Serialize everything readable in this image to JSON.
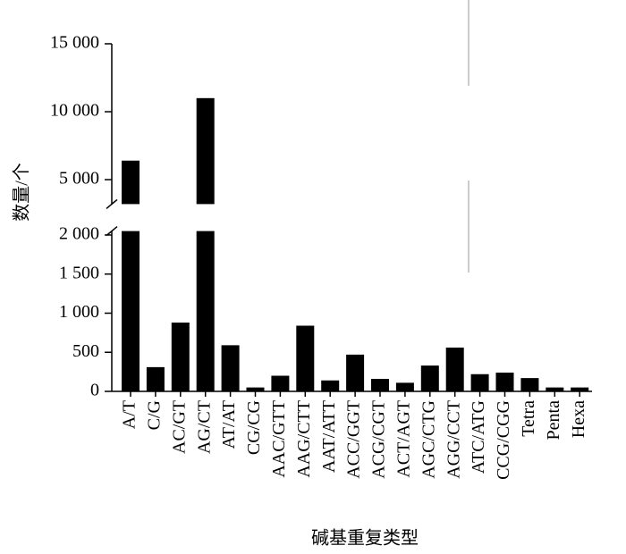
{
  "chart_data": {
    "type": "bar",
    "x_label": "碱基重复类型",
    "y_label": "数量/个",
    "categories": [
      "A/T",
      "C/G",
      "AC/GT",
      "AG/CT",
      "AT/AT",
      "CG/CG",
      "AAC/GTT",
      "AAG/CTT",
      "AAT/ATT",
      "ACC/GGT",
      "ACG/CGT",
      "ACT/AGT",
      "AGC/CTG",
      "AGG/CCT",
      "ATC/ATG",
      "CCG/CGG",
      "Tetra",
      "Penta",
      "Hexa"
    ],
    "values": [
      6400,
      310,
      880,
      11000,
      590,
      50,
      200,
      840,
      140,
      470,
      160,
      110,
      330,
      560,
      220,
      240,
      170,
      50,
      50
    ],
    "color": "#000000",
    "ylim_lower": [
      0,
      2050
    ],
    "yticks_lower": [
      0,
      500,
      {
        "value": 1000,
        "label": "1 000"
      },
      {
        "value": 1500,
        "label": "1 500"
      },
      {
        "value": 2000,
        "label": "2 000"
      }
    ],
    "ylim_upper": [
      3200,
      15000
    ],
    "yticks_upper": [
      {
        "value": 5000,
        "label": "5 000"
      },
      {
        "value": 10000,
        "label": "10 000"
      },
      {
        "value": 15000,
        "label": "15 000"
      }
    ],
    "grid": false
  }
}
